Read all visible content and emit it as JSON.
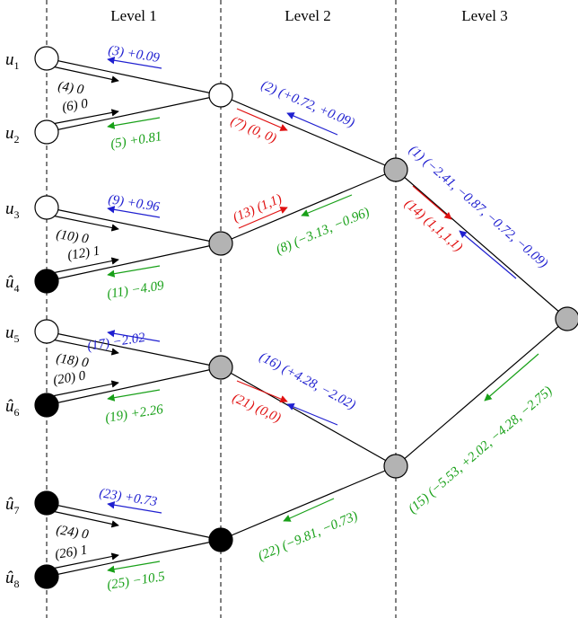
{
  "levels": [
    "Level 1",
    "Level 2",
    "Level 3"
  ],
  "variables": {
    "u1": {
      "base": "u",
      "sub": "1"
    },
    "u2": {
      "base": "u",
      "sub": "2"
    },
    "u3": {
      "base": "u",
      "sub": "3"
    },
    "u4": {
      "base": "û",
      "sub": "4"
    },
    "u5": {
      "base": "u",
      "sub": "5"
    },
    "u6": {
      "base": "û",
      "sub": "6"
    },
    "u7": {
      "base": "û",
      "sub": "7"
    },
    "u8": {
      "base": "û",
      "sub": "8"
    }
  },
  "messages": {
    "m1": "(1) (−2.41, −0.87, −0.72, −0.09)",
    "m2": "(2) (+0.72, +0.09)",
    "m3": "(3) +0.09",
    "m4": "(4) 0",
    "m5": "(5) +0.81",
    "m6": "(6) 0",
    "m7": "(7) (0, 0)",
    "m8": "(8) (−3.13, −0.96)",
    "m9": "(9) +0.96",
    "m10": "(10) 0",
    "m11": "(11) −4.09",
    "m12": "(12) 1",
    "m13": "(13) (1,1)",
    "m14": "(14) (1,1,1,1)",
    "m15": "(15) (−5.53, +2.02, −4.28, −2.75)",
    "m16": "(16) (+4.28, −2.02)",
    "m17": "(17) −2.02",
    "m18": "(18) 0",
    "m19": "(19) +2.26",
    "m20": "(20) 0",
    "m21": "(21) (0,0)",
    "m22": "(22) (−9.81, −0.73)",
    "m23": "(23) +0.73",
    "m24": "(24) 0",
    "m25": "(25) −10.5",
    "m26": "(26) 1"
  },
  "colors": {
    "blue": "#1f1fd0",
    "red": "#e01010",
    "green": "#18a018",
    "black": "#000000",
    "node_gray": "#b3b3b3"
  }
}
